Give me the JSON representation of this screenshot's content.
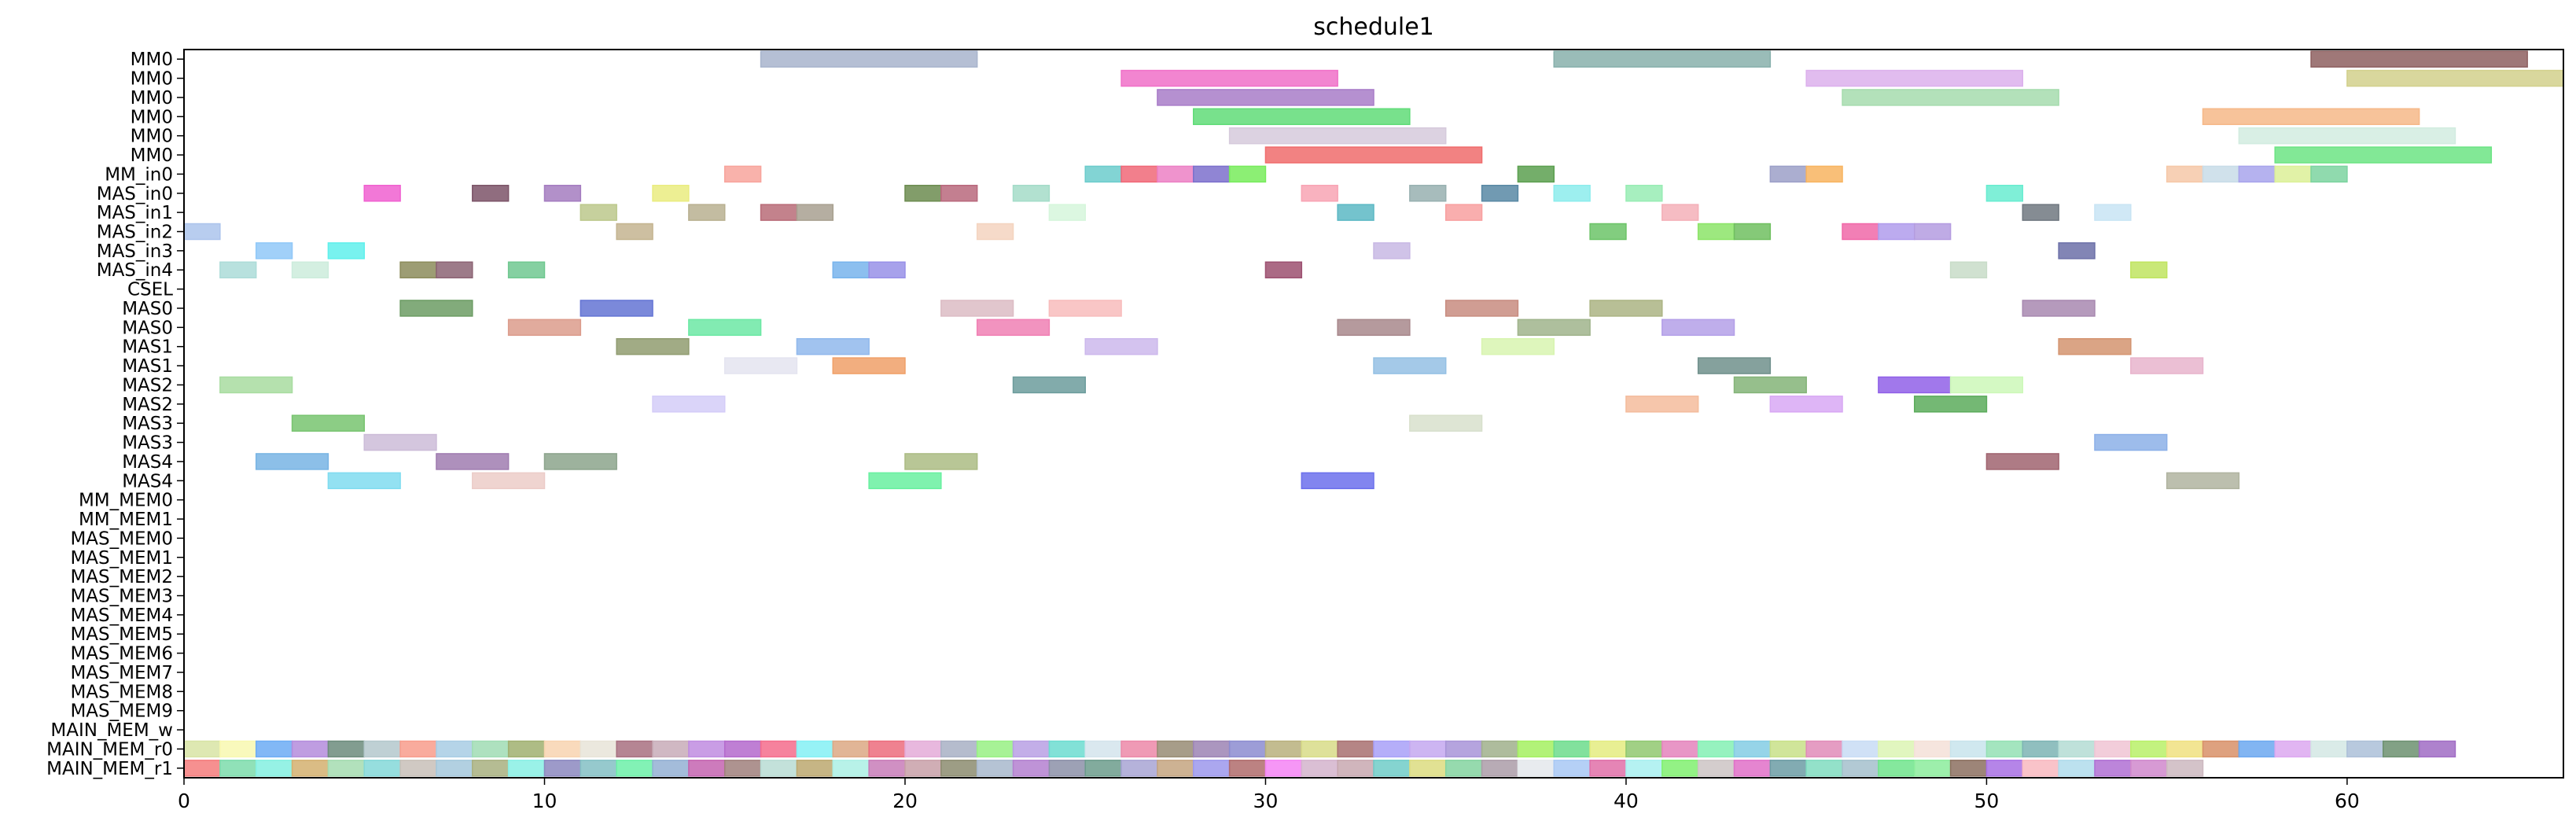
{
  "chart_data": {
    "type": "gantt",
    "title": "schedule1",
    "xlabel": "",
    "ylabel": "",
    "xlim": [
      0,
      66
    ],
    "x_ticks": [
      0,
      10,
      20,
      30,
      40,
      50,
      60
    ],
    "rows": [
      "MM0",
      "MM0",
      "MM0",
      "MM0",
      "MM0",
      "MM0",
      "MM_in0",
      "MAS_in0",
      "MAS_in1",
      "MAS_in2",
      "MAS_in3",
      "MAS_in4",
      "CSEL",
      "MAS0",
      "MAS0",
      "MAS1",
      "MAS1",
      "MAS2",
      "MAS2",
      "MAS3",
      "MAS3",
      "MAS4",
      "MAS4",
      "MM_MEM0",
      "MM_MEM1",
      "MAS_MEM0",
      "MAS_MEM1",
      "MAS_MEM2",
      "MAS_MEM3",
      "MAS_MEM4",
      "MAS_MEM5",
      "MAS_MEM6",
      "MAS_MEM7",
      "MAS_MEM8",
      "MAS_MEM9",
      "MAIN_MEM_w",
      "MAIN_MEM_r0",
      "MAIN_MEM_r1"
    ],
    "grid": false,
    "legend": "none",
    "tasks": [
      {
        "row": 0,
        "start": 16,
        "end": 22,
        "color": "#a8b4cc"
      },
      {
        "row": 0,
        "start": 38,
        "end": 44,
        "color": "#88b0ac"
      },
      {
        "row": 0,
        "start": 59,
        "end": 65,
        "color": "#8e6060"
      },
      {
        "row": 1,
        "start": 26,
        "end": 32,
        "color": "#f070c8"
      },
      {
        "row": 1,
        "start": 45,
        "end": 51,
        "color": "#dcb0ec"
      },
      {
        "row": 1,
        "start": 60,
        "end": 66,
        "color": "#d2d08c"
      },
      {
        "row": 2,
        "start": 27,
        "end": 33,
        "color": "#a87cc8"
      },
      {
        "row": 2,
        "start": 46,
        "end": 52,
        "color": "#a6dcae"
      },
      {
        "row": 3,
        "start": 28,
        "end": 34,
        "color": "#60dc78"
      },
      {
        "row": 3,
        "start": 56,
        "end": 62,
        "color": "#f6b888"
      },
      {
        "row": 4,
        "start": 29,
        "end": 35,
        "color": "#d6cadc"
      },
      {
        "row": 4,
        "start": 57,
        "end": 63,
        "color": "#d2ece0"
      },
      {
        "row": 5,
        "start": 30,
        "end": 36,
        "color": "#f06c6c"
      },
      {
        "row": 5,
        "start": 58,
        "end": 64,
        "color": "#6ce484"
      },
      {
        "row": 6,
        "start": 15,
        "end": 16,
        "color": "#f8a49c"
      },
      {
        "row": 6,
        "start": 25,
        "end": 26,
        "color": "#6ccccc"
      },
      {
        "row": 6,
        "start": 26,
        "end": 27,
        "color": "#f06878"
      },
      {
        "row": 6,
        "start": 27,
        "end": 28,
        "color": "#ec80c4"
      },
      {
        "row": 6,
        "start": 28,
        "end": 29,
        "color": "#7c70cc"
      },
      {
        "row": 6,
        "start": 29,
        "end": 30,
        "color": "#78ec5c"
      },
      {
        "row": 6,
        "start": 37,
        "end": 38,
        "color": "#5ca050"
      },
      {
        "row": 6,
        "start": 44,
        "end": 45,
        "color": "#9ca0c8"
      },
      {
        "row": 6,
        "start": 45,
        "end": 46,
        "color": "#f8b460"
      },
      {
        "row": 6,
        "start": 55,
        "end": 56,
        "color": "#f6c8a8"
      },
      {
        "row": 6,
        "start": 56,
        "end": 57,
        "color": "#c8dce8"
      },
      {
        "row": 6,
        "start": 57,
        "end": 58,
        "color": "#a8a4ec"
      },
      {
        "row": 6,
        "start": 58,
        "end": 59,
        "color": "#dcf098"
      },
      {
        "row": 6,
        "start": 59,
        "end": 60,
        "color": "#7cd4a0"
      },
      {
        "row": 7,
        "start": 5,
        "end": 6,
        "color": "#f060d0"
      },
      {
        "row": 7,
        "start": 8,
        "end": 9,
        "color": "#7c5468"
      },
      {
        "row": 7,
        "start": 10,
        "end": 11,
        "color": "#a47cc0"
      },
      {
        "row": 7,
        "start": 13,
        "end": 14,
        "color": "#eaec80"
      },
      {
        "row": 7,
        "start": 20,
        "end": 21,
        "color": "#6c8c50"
      },
      {
        "row": 7,
        "start": 21,
        "end": 22,
        "color": "#b8687c"
      },
      {
        "row": 7,
        "start": 23,
        "end": 24,
        "color": "#a4dcc8"
      },
      {
        "row": 7,
        "start": 31,
        "end": 32,
        "color": "#f8a4b4"
      },
      {
        "row": 7,
        "start": 34,
        "end": 35,
        "color": "#98b0b0"
      },
      {
        "row": 7,
        "start": 36,
        "end": 37,
        "color": "#5888a4"
      },
      {
        "row": 7,
        "start": 38,
        "end": 39,
        "color": "#8cecec"
      },
      {
        "row": 7,
        "start": 40,
        "end": 41,
        "color": "#98ecb4"
      },
      {
        "row": 7,
        "start": 50,
        "end": 51,
        "color": "#68ecd0"
      },
      {
        "row": 8,
        "start": 11,
        "end": 12,
        "color": "#bcc88c"
      },
      {
        "row": 8,
        "start": 14,
        "end": 15,
        "color": "#b8b090"
      },
      {
        "row": 8,
        "start": 16,
        "end": 17,
        "color": "#b86c78"
      },
      {
        "row": 8,
        "start": 17,
        "end": 18,
        "color": "#a8a090"
      },
      {
        "row": 8,
        "start": 24,
        "end": 25,
        "color": "#d6f6dc"
      },
      {
        "row": 8,
        "start": 32,
        "end": 33,
        "color": "#5cb8c4"
      },
      {
        "row": 8,
        "start": 35,
        "end": 36,
        "color": "#f8a0a0"
      },
      {
        "row": 8,
        "start": 41,
        "end": 42,
        "color": "#f4b0b8"
      },
      {
        "row": 8,
        "start": 51,
        "end": 52,
        "color": "#707880"
      },
      {
        "row": 8,
        "start": 53,
        "end": 54,
        "color": "#c8e4f4"
      },
      {
        "row": 9,
        "start": 0,
        "end": 1,
        "color": "#acc4ec"
      },
      {
        "row": 9,
        "start": 12,
        "end": 13,
        "color": "#c4b490"
      },
      {
        "row": 9,
        "start": 22,
        "end": 23,
        "color": "#f4d4c0"
      },
      {
        "row": 9,
        "start": 39,
        "end": 40,
        "color": "#6cc468"
      },
      {
        "row": 9,
        "start": 42,
        "end": 43,
        "color": "#8ce468"
      },
      {
        "row": 9,
        "start": 43,
        "end": 44,
        "color": "#70c060"
      },
      {
        "row": 9,
        "start": 46,
        "end": 47,
        "color": "#f068a8"
      },
      {
        "row": 9,
        "start": 47,
        "end": 48,
        "color": "#b09cec"
      },
      {
        "row": 9,
        "start": 48,
        "end": 49,
        "color": "#b49ce0"
      },
      {
        "row": 10,
        "start": 2,
        "end": 3,
        "color": "#90c8f8"
      },
      {
        "row": 10,
        "start": 4,
        "end": 5,
        "color": "#60f0ec"
      },
      {
        "row": 10,
        "start": 33,
        "end": 34,
        "color": "#c8b8e4"
      },
      {
        "row": 10,
        "start": 52,
        "end": 53,
        "color": "#6c70a8"
      },
      {
        "row": 11,
        "start": 1,
        "end": 2,
        "color": "#acdcd8"
      },
      {
        "row": 11,
        "start": 3,
        "end": 4,
        "color": "#ccecdc"
      },
      {
        "row": 11,
        "start": 6,
        "end": 7,
        "color": "#8c8c5c"
      },
      {
        "row": 11,
        "start": 7,
        "end": 8,
        "color": "#8c6474"
      },
      {
        "row": 11,
        "start": 9,
        "end": 10,
        "color": "#70c890"
      },
      {
        "row": 11,
        "start": 18,
        "end": 19,
        "color": "#78b4ec"
      },
      {
        "row": 11,
        "start": 19,
        "end": 20,
        "color": "#9890e8"
      },
      {
        "row": 11,
        "start": 30,
        "end": 31,
        "color": "#9c5070"
      },
      {
        "row": 11,
        "start": 49,
        "end": 50,
        "color": "#c8dcc8"
      },
      {
        "row": 11,
        "start": 54,
        "end": 55,
        "color": "#c0e460"
      },
      {
        "row": 13,
        "start": 6,
        "end": 8,
        "color": "#6c9c64"
      },
      {
        "row": 13,
        "start": 11,
        "end": 13,
        "color": "#6474d4"
      },
      {
        "row": 13,
        "start": 21,
        "end": 23,
        "color": "#dcbcc4"
      },
      {
        "row": 13,
        "start": 24,
        "end": 26,
        "color": "#f8bcbc"
      },
      {
        "row": 13,
        "start": 35,
        "end": 37,
        "color": "#c88c80"
      },
      {
        "row": 13,
        "start": 39,
        "end": 41,
        "color": "#acb484"
      },
      {
        "row": 13,
        "start": 51,
        "end": 53,
        "color": "#a888b0"
      },
      {
        "row": 14,
        "start": 9,
        "end": 11,
        "color": "#dc9c8c"
      },
      {
        "row": 14,
        "start": 14,
        "end": 16,
        "color": "#6ce8a4"
      },
      {
        "row": 14,
        "start": 22,
        "end": 24,
        "color": "#f080b4"
      },
      {
        "row": 14,
        "start": 32,
        "end": 34,
        "color": "#a8888c"
      },
      {
        "row": 14,
        "start": 37,
        "end": 39,
        "color": "#a0b48c"
      },
      {
        "row": 14,
        "start": 41,
        "end": 43,
        "color": "#b4a0e8"
      },
      {
        "row": 15,
        "start": 12,
        "end": 14,
        "color": "#909c70"
      },
      {
        "row": 15,
        "start": 17,
        "end": 19,
        "color": "#90b8ec"
      },
      {
        "row": 15,
        "start": 25,
        "end": 27,
        "color": "#ccb8ec"
      },
      {
        "row": 15,
        "start": 36,
        "end": 38,
        "color": "#d8f4b0"
      },
      {
        "row": 15,
        "start": 52,
        "end": 54,
        "color": "#d49470"
      },
      {
        "row": 16,
        "start": 15,
        "end": 17,
        "color": "#e4e4f0"
      },
      {
        "row": 16,
        "start": 18,
        "end": 20,
        "color": "#f0a068"
      },
      {
        "row": 16,
        "start": 33,
        "end": 35,
        "color": "#94c0e4"
      },
      {
        "row": 16,
        "start": 42,
        "end": 44,
        "color": "#70908c"
      },
      {
        "row": 16,
        "start": 54,
        "end": 56,
        "color": "#e8b4cc"
      },
      {
        "row": 17,
        "start": 1,
        "end": 3,
        "color": "#a8dca0"
      },
      {
        "row": 17,
        "start": 23,
        "end": 25,
        "color": "#6c9c9c"
      },
      {
        "row": 17,
        "start": 43,
        "end": 45,
        "color": "#84b478"
      },
      {
        "row": 17,
        "start": 47,
        "end": 49,
        "color": "#9060e8"
      },
      {
        "row": 17,
        "start": 49,
        "end": 51,
        "color": "#ccf8b8"
      },
      {
        "row": 18,
        "start": 13,
        "end": 15,
        "color": "#d4ccf8"
      },
      {
        "row": 18,
        "start": 40,
        "end": 42,
        "color": "#f4bc9c"
      },
      {
        "row": 18,
        "start": 44,
        "end": 46,
        "color": "#d8a8f4"
      },
      {
        "row": 18,
        "start": 48,
        "end": 50,
        "color": "#5cac5c"
      },
      {
        "row": 19,
        "start": 3,
        "end": 5,
        "color": "#78c470"
      },
      {
        "row": 19,
        "start": 34,
        "end": 36,
        "color": "#d8e0cc"
      },
      {
        "row": 20,
        "start": 5,
        "end": 7,
        "color": "#ccbcd8"
      },
      {
        "row": 20,
        "start": 53,
        "end": 55,
        "color": "#8cb0e8"
      },
      {
        "row": 21,
        "start": 2,
        "end": 4,
        "color": "#78b4e4"
      },
      {
        "row": 21,
        "start": 7,
        "end": 9,
        "color": "#a07cb0"
      },
      {
        "row": 21,
        "start": 10,
        "end": 12,
        "color": "#8ca48c"
      },
      {
        "row": 21,
        "start": 20,
        "end": 22,
        "color": "#acbc84"
      },
      {
        "row": 21,
        "start": 50,
        "end": 52,
        "color": "#a06470"
      },
      {
        "row": 22,
        "start": 4,
        "end": 6,
        "color": "#80dcf0"
      },
      {
        "row": 22,
        "start": 8,
        "end": 10,
        "color": "#ecccc8"
      },
      {
        "row": 22,
        "start": 19,
        "end": 21,
        "color": "#68f0a0"
      },
      {
        "row": 22,
        "start": 31,
        "end": 33,
        "color": "#6c70ec"
      },
      {
        "row": 22,
        "start": 55,
        "end": 57,
        "color": "#b0b4a0"
      }
    ],
    "mem_r0_colors": [
      "#d8e4a4",
      "#f8f8b0",
      "#6cacf4",
      "#b48cdc",
      "#6c8c7c",
      "#b4c8cc",
      "#f89c8c",
      "#a8cce4",
      "#a0dcb4",
      "#a0b070",
      "#f8d4b0",
      "#e8e4d8",
      "#a87080",
      "#c8acb8",
      "#c08ce0",
      "#b468cc",
      "#f46c8c",
      "#84f0f4",
      "#dca884",
      "#ec6c7c",
      "#e4acd8",
      "#a8b0c4",
      "#98f084",
      "#b8a0e4",
      "#6cdcd0",
      "#d4e4ec",
      "#ec88a8",
      "#988c74",
      "#9c84b4",
      "#8c8cd0",
      "#b8b07c",
      "#d8dc88",
      "#a87070",
      "#a8a0f8",
      "#c4a8f0",
      "#a894d8",
      "#a0b08c",
      "#a4f060",
      "#6cdc8c",
      "#e4ec80",
      "#90c870",
      "#e484bc",
      "#84f0b4",
      "#84cce4",
      "#c8e088",
      "#e08cb8",
      "#c8dcf4",
      "#dcf4b4",
      "#f4e0d8",
      "#c8e4ec",
      "#94e0b4",
      "#7cb4b4",
      "#b4dcd4",
      "#f0c4d4",
      "#b8f068",
      "#f0e080",
      "#d89068",
      "#6ca8f0",
      "#dca8f0",
      "#d4e8e4",
      "#acc0d8",
      "#6c9070",
      "#a06cc4"
    ],
    "mem_r1_colors": [
      "#f47c7c",
      "#7cdcac",
      "#84f0e0",
      "#d4b070",
      "#a4dcb0",
      "#84d8d8",
      "#c8c0b8",
      "#a4c8dc",
      "#a8b080",
      "#88f0e4",
      "#8c88c0",
      "#84c0c4",
      "#6cf0a8",
      "#94b0d4",
      "#c464b0",
      "#a0807c",
      "#b8dcd4",
      "#bca870",
      "#acf0e4",
      "#c87cb8",
      "#c8a0a8",
      "#8c8c70",
      "#a8b8cc",
      "#b480d0",
      "#8c90a8",
      "#6c9c8c",
      "#a8a4d4",
      "#c4a480",
      "#9c98ec",
      "#b06c6c",
      "#f484f4",
      "#d4b4cc",
      "#c8a8b0",
      "#70ccc8",
      "#dcdc80",
      "#84d4a0",
      "#ac9ca8",
      "#e4e8ec",
      "#a8c8f4",
      "#e070a8",
      "#a8f0f0",
      "#80f070",
      "#ccc4c4",
      "#e070c8",
      "#6c9ca4",
      "#80dcc0",
      "#a4c0cc",
      "#70e48c",
      "#8cec9c",
      "#8c7060",
      "#a870e4",
      "#f8b8c0",
      "#b0dcec",
      "#b070d4",
      "#d088cc",
      "#ccb8c0"
    ]
  }
}
